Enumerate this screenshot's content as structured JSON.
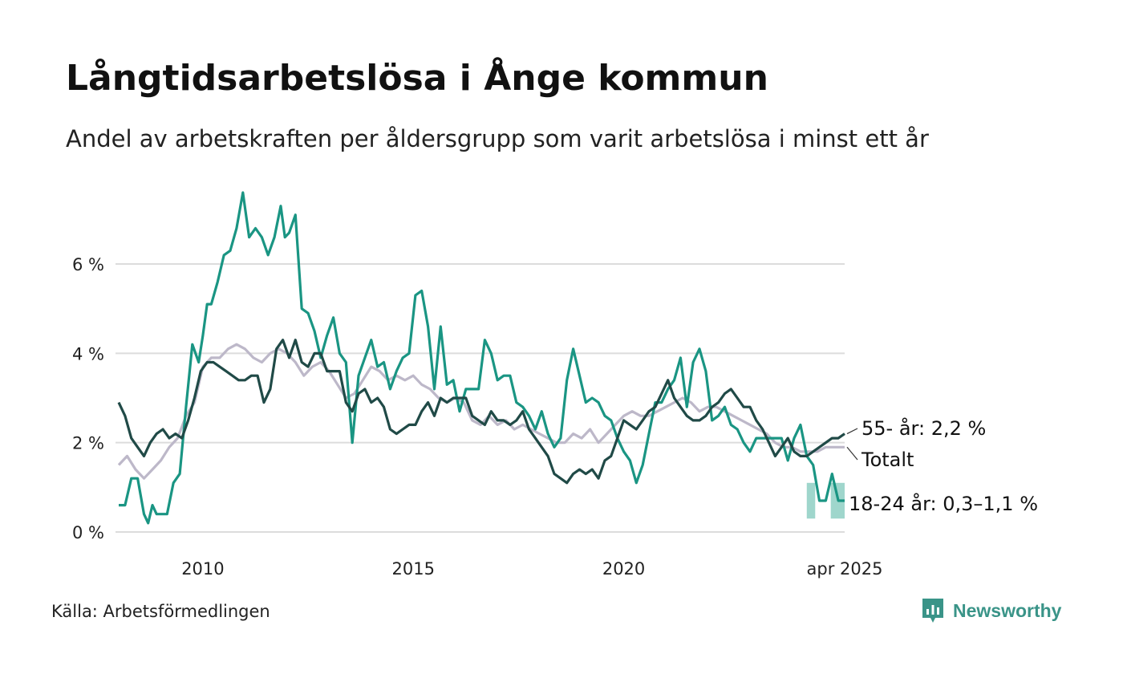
{
  "header": {
    "title": "Långtidsarbetslösa i Ånge kommun",
    "subtitle": "Andel av arbetskraften per åldersgrupp som varit arbetslösa i minst ett år"
  },
  "footer": {
    "source": "Källa: Arbetsförmedlingen",
    "brand": "Newsworthy",
    "brand_icon": "bar-chart-logo-icon"
  },
  "colors": {
    "youth": "#1a9583",
    "youth_band": "#9fd6cc",
    "senior": "#204a47",
    "total": "#bdb8c9",
    "grid": "#dcdcdc",
    "brand": "#3a9488"
  },
  "chart_data": {
    "type": "line",
    "xlim": [
      2008.0,
      2025.25
    ],
    "ylim": [
      0,
      7.6
    ],
    "x_ticks": [
      {
        "value": 2010,
        "label": "2010"
      },
      {
        "value": 2015,
        "label": "2015"
      },
      {
        "value": 2020,
        "label": "2020"
      },
      {
        "value": 2025.25,
        "label": "apr 2025"
      }
    ],
    "y_ticks": [
      {
        "value": 0,
        "label": "0 %"
      },
      {
        "value": 2,
        "label": "2 %"
      },
      {
        "value": 4,
        "label": "4 %"
      },
      {
        "value": 6,
        "label": "6 %"
      }
    ],
    "grid": true,
    "uncertainty_band": {
      "series": "18-24 år",
      "segments": [
        {
          "x": [
            2024.92,
            2025.25
          ],
          "low": 0.3,
          "high": 1.1
        },
        {
          "x": [
            2024.35,
            2024.55
          ],
          "low": 0.3,
          "high": 1.1
        }
      ]
    },
    "series": [
      {
        "name": "Totalt",
        "label": "Totalt",
        "color_key": "total",
        "x": [
          2008.0,
          2008.2,
          2008.4,
          2008.6,
          2008.8,
          2009.0,
          2009.2,
          2009.4,
          2009.6,
          2009.8,
          2010.0,
          2010.2,
          2010.4,
          2010.6,
          2010.8,
          2011.0,
          2011.2,
          2011.4,
          2011.6,
          2011.8,
          2012.0,
          2012.2,
          2012.4,
          2012.6,
          2012.8,
          2013.0,
          2013.2,
          2013.4,
          2013.6,
          2013.8,
          2014.0,
          2014.2,
          2014.4,
          2014.6,
          2014.8,
          2015.0,
          2015.2,
          2015.4,
          2015.6,
          2015.8,
          2016.0,
          2016.2,
          2016.4,
          2016.6,
          2016.8,
          2017.0,
          2017.2,
          2017.4,
          2017.6,
          2017.8,
          2018.0,
          2018.2,
          2018.4,
          2018.6,
          2018.8,
          2019.0,
          2019.2,
          2019.4,
          2019.6,
          2019.8,
          2020.0,
          2020.2,
          2020.4,
          2020.6,
          2020.8,
          2021.0,
          2021.2,
          2021.4,
          2021.6,
          2021.8,
          2022.0,
          2022.2,
          2022.4,
          2022.6,
          2022.8,
          2023.0,
          2023.2,
          2023.4,
          2023.6,
          2023.8,
          2024.0,
          2024.2,
          2024.4,
          2024.6,
          2024.8,
          2025.0,
          2025.25
        ],
        "values": [
          1.5,
          1.7,
          1.4,
          1.2,
          1.4,
          1.6,
          1.9,
          2.1,
          2.6,
          2.9,
          3.7,
          3.9,
          3.9,
          4.1,
          4.2,
          4.1,
          3.9,
          3.8,
          4.0,
          4.1,
          4.0,
          3.8,
          3.5,
          3.7,
          3.8,
          3.6,
          3.3,
          3.0,
          3.1,
          3.4,
          3.7,
          3.6,
          3.4,
          3.5,
          3.4,
          3.5,
          3.3,
          3.2,
          3.0,
          2.9,
          3.0,
          2.9,
          2.5,
          2.4,
          2.6,
          2.4,
          2.5,
          2.3,
          2.4,
          2.3,
          2.2,
          2.1,
          2.0,
          2.0,
          2.2,
          2.1,
          2.3,
          2.0,
          2.2,
          2.4,
          2.6,
          2.7,
          2.6,
          2.6,
          2.7,
          2.8,
          2.9,
          3.0,
          2.9,
          2.7,
          2.8,
          2.8,
          2.7,
          2.6,
          2.5,
          2.4,
          2.3,
          2.2,
          2.0,
          1.9,
          1.9,
          1.8,
          1.8,
          1.8,
          1.9,
          1.9,
          1.9
        ]
      },
      {
        "name": "18-24 år",
        "label": "18-24 år: 0,3–1,1 %",
        "color_key": "youth",
        "x": [
          2008.0,
          2008.15,
          2008.3,
          2008.45,
          2008.6,
          2008.7,
          2008.8,
          2008.9,
          2009.0,
          2009.15,
          2009.3,
          2009.45,
          2009.6,
          2009.75,
          2009.9,
          2010.0,
          2010.1,
          2010.2,
          2010.35,
          2010.5,
          2010.65,
          2010.8,
          2010.95,
          2011.1,
          2011.25,
          2011.4,
          2011.55,
          2011.7,
          2011.85,
          2011.95,
          2012.05,
          2012.2,
          2012.35,
          2012.5,
          2012.65,
          2012.8,
          2012.95,
          2013.1,
          2013.25,
          2013.4,
          2013.55,
          2013.7,
          2013.85,
          2014.0,
          2014.15,
          2014.3,
          2014.45,
          2014.6,
          2014.75,
          2014.9,
          2015.05,
          2015.2,
          2015.35,
          2015.5,
          2015.65,
          2015.8,
          2015.95,
          2016.1,
          2016.25,
          2016.4,
          2016.55,
          2016.7,
          2016.85,
          2017.0,
          2017.15,
          2017.3,
          2017.45,
          2017.6,
          2017.75,
          2017.9,
          2018.05,
          2018.2,
          2018.35,
          2018.5,
          2018.65,
          2018.8,
          2018.95,
          2019.1,
          2019.25,
          2019.4,
          2019.55,
          2019.7,
          2019.85,
          2020.0,
          2020.15,
          2020.3,
          2020.45,
          2020.6,
          2020.75,
          2020.9,
          2021.05,
          2021.2,
          2021.35,
          2021.5,
          2021.65,
          2021.8,
          2021.95,
          2022.1,
          2022.25,
          2022.4,
          2022.55,
          2022.7,
          2022.85,
          2023.0,
          2023.15,
          2023.3,
          2023.45,
          2023.6,
          2023.75,
          2023.9,
          2024.05,
          2024.2,
          2024.35,
          2024.5,
          2024.65,
          2024.8,
          2024.95,
          2025.1,
          2025.25
        ],
        "values": [
          0.6,
          0.6,
          1.2,
          1.2,
          0.4,
          0.2,
          0.6,
          0.4,
          0.4,
          0.4,
          1.1,
          1.3,
          2.8,
          4.2,
          3.8,
          4.4,
          5.1,
          5.1,
          5.6,
          6.2,
          6.3,
          6.8,
          7.6,
          6.6,
          6.8,
          6.6,
          6.2,
          6.6,
          7.3,
          6.6,
          6.7,
          7.1,
          5.0,
          4.9,
          4.5,
          3.9,
          4.4,
          4.8,
          4.0,
          3.8,
          2.0,
          3.5,
          3.9,
          4.3,
          3.7,
          3.8,
          3.2,
          3.6,
          3.9,
          4.0,
          5.3,
          5.4,
          4.6,
          3.2,
          4.6,
          3.3,
          3.4,
          2.7,
          3.2,
          3.2,
          3.2,
          4.3,
          4.0,
          3.4,
          3.5,
          3.5,
          2.9,
          2.8,
          2.6,
          2.3,
          2.7,
          2.2,
          1.9,
          2.1,
          3.4,
          4.1,
          3.5,
          2.9,
          3.0,
          2.9,
          2.6,
          2.5,
          2.1,
          1.8,
          1.6,
          1.1,
          1.5,
          2.2,
          2.9,
          2.9,
          3.2,
          3.4,
          3.9,
          2.8,
          3.8,
          4.1,
          3.6,
          2.5,
          2.6,
          2.8,
          2.4,
          2.3,
          2.0,
          1.8,
          2.1,
          2.1,
          2.1,
          2.1,
          2.1,
          1.6,
          2.1,
          2.4,
          1.7,
          1.5,
          0.7,
          0.7,
          1.3,
          0.7,
          0.7
        ]
      },
      {
        "name": "55- år",
        "label": "55- år: 2,2 %",
        "color_key": "senior",
        "x": [
          2008.0,
          2008.15,
          2008.3,
          2008.45,
          2008.6,
          2008.75,
          2008.9,
          2009.05,
          2009.2,
          2009.35,
          2009.5,
          2009.65,
          2009.8,
          2009.95,
          2010.1,
          2010.25,
          2010.4,
          2010.55,
          2010.7,
          2010.85,
          2011.0,
          2011.15,
          2011.3,
          2011.45,
          2011.6,
          2011.75,
          2011.9,
          2012.05,
          2012.2,
          2012.35,
          2012.5,
          2012.65,
          2012.8,
          2012.95,
          2013.1,
          2013.25,
          2013.4,
          2013.55,
          2013.7,
          2013.85,
          2014.0,
          2014.15,
          2014.3,
          2014.45,
          2014.6,
          2014.75,
          2014.9,
          2015.05,
          2015.2,
          2015.35,
          2015.5,
          2015.65,
          2015.8,
          2015.95,
          2016.1,
          2016.25,
          2016.4,
          2016.55,
          2016.7,
          2016.85,
          2017.0,
          2017.15,
          2017.3,
          2017.45,
          2017.6,
          2017.75,
          2017.9,
          2018.05,
          2018.2,
          2018.35,
          2018.5,
          2018.65,
          2018.8,
          2018.95,
          2019.1,
          2019.25,
          2019.4,
          2019.55,
          2019.7,
          2019.85,
          2020.0,
          2020.15,
          2020.3,
          2020.45,
          2020.6,
          2020.75,
          2020.9,
          2021.05,
          2021.2,
          2021.35,
          2021.5,
          2021.65,
          2021.8,
          2021.95,
          2022.1,
          2022.25,
          2022.4,
          2022.55,
          2022.7,
          2022.85,
          2023.0,
          2023.15,
          2023.3,
          2023.45,
          2023.6,
          2023.75,
          2023.9,
          2024.05,
          2024.2,
          2024.35,
          2024.5,
          2024.65,
          2024.8,
          2024.95,
          2025.1,
          2025.25
        ],
        "values": [
          2.9,
          2.6,
          2.1,
          1.9,
          1.7,
          2.0,
          2.2,
          2.3,
          2.1,
          2.2,
          2.1,
          2.5,
          3.0,
          3.6,
          3.8,
          3.8,
          3.7,
          3.6,
          3.5,
          3.4,
          3.4,
          3.5,
          3.5,
          2.9,
          3.2,
          4.1,
          4.3,
          3.9,
          4.3,
          3.8,
          3.7,
          4.0,
          4.0,
          3.6,
          3.6,
          3.6,
          2.9,
          2.7,
          3.1,
          3.2,
          2.9,
          3.0,
          2.8,
          2.3,
          2.2,
          2.3,
          2.4,
          2.4,
          2.7,
          2.9,
          2.6,
          3.0,
          2.9,
          3.0,
          3.0,
          3.0,
          2.6,
          2.5,
          2.4,
          2.7,
          2.5,
          2.5,
          2.4,
          2.5,
          2.7,
          2.3,
          2.1,
          1.9,
          1.7,
          1.3,
          1.2,
          1.1,
          1.3,
          1.4,
          1.3,
          1.4,
          1.2,
          1.6,
          1.7,
          2.1,
          2.5,
          2.4,
          2.3,
          2.5,
          2.7,
          2.8,
          3.1,
          3.4,
          3.0,
          2.8,
          2.6,
          2.5,
          2.5,
          2.6,
          2.8,
          2.9,
          3.1,
          3.2,
          3.0,
          2.8,
          2.8,
          2.5,
          2.3,
          2.0,
          1.7,
          1.9,
          2.1,
          1.8,
          1.7,
          1.7,
          1.8,
          1.9,
          2.0,
          2.1,
          2.1,
          2.2
        ]
      }
    ]
  }
}
